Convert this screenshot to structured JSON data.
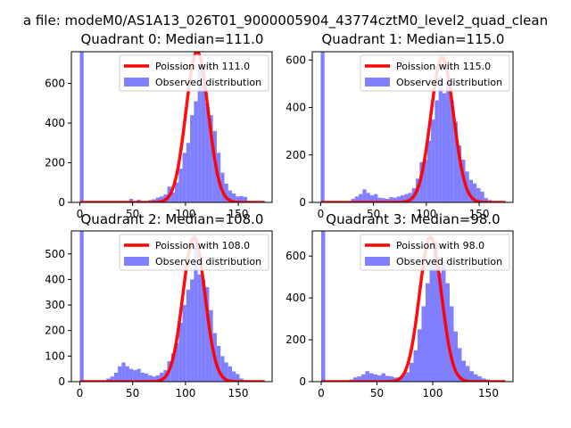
{
  "figure": {
    "suptitle": "a file: modeM0/AS1A13_026T01_9000005904_43774cztM0_level2_quad_clean"
  },
  "colors": {
    "histogram": "#7f7fff",
    "poisson_line": "#ff0000",
    "axes": "#000000",
    "background": "#ffffff"
  },
  "chart_data": [
    {
      "type": "bar",
      "title": "Quadrant 0: Median=111.0",
      "xlabel": "",
      "ylabel": "",
      "xlim": [
        -8,
        182
      ],
      "ylim": [
        0,
        760
      ],
      "xticks": [
        0,
        50,
        100,
        150
      ],
      "yticks": [
        0,
        200,
        400,
        600
      ],
      "bin_width": 3.6,
      "legend_position": "upper right",
      "legend": [
        "Poission with 111.0",
        "Observed distribution"
      ],
      "median": 111.0,
      "observed": {
        "name": "Observed distribution",
        "bins_x": [
          0,
          46.8,
          54,
          64.8,
          68.4,
          72,
          75.6,
          79.2,
          82.8,
          86.4,
          90,
          93.6,
          97.2,
          100.8,
          104.4,
          108,
          111.6,
          115.2,
          118.8,
          122.4,
          126,
          129.6,
          133.2,
          136.8,
          140.4,
          144,
          147.6,
          151.2,
          154.8,
          158.4,
          162
        ],
        "counts": [
          760,
          18,
          14,
          12,
          16,
          25,
          30,
          40,
          80,
          50,
          100,
          170,
          250,
          300,
          440,
          510,
          700,
          660,
          500,
          440,
          360,
          250,
          150,
          95,
          60,
          45,
          30,
          32,
          28,
          8,
          5
        ]
      },
      "poisson": {
        "name": "Poission with 111.0",
        "mean": 111.0,
        "x_range": [
          0,
          175
        ],
        "peak": 760
      }
    },
    {
      "type": "bar",
      "title": "Quadrant 1: Median=115.0",
      "xlabel": "",
      "ylabel": "",
      "xlim": [
        -8,
        182
      ],
      "ylim": [
        0,
        635
      ],
      "xticks": [
        0,
        50,
        100,
        150
      ],
      "yticks": [
        0,
        200,
        400,
        600
      ],
      "bin_width": 3.6,
      "legend_position": "upper right",
      "legend": [
        "Poission with 115.0",
        "Observed distribution"
      ],
      "median": 115.0,
      "observed": {
        "name": "Observed distribution",
        "bins_x": [
          0,
          28.8,
          32.4,
          36,
          39.6,
          43.2,
          46.8,
          50.4,
          54,
          57.6,
          61.2,
          64.8,
          68.4,
          72,
          75.6,
          79.2,
          82.8,
          86.4,
          90,
          93.6,
          97.2,
          100.8,
          104.4,
          108,
          111.6,
          115.2,
          118.8,
          122.4,
          126,
          129.6,
          133.2,
          136.8,
          140.4,
          144,
          147.6,
          151.2,
          154.8,
          158.4
        ],
        "counts": [
          635,
          15,
          25,
          35,
          55,
          40,
          30,
          35,
          20,
          18,
          15,
          22,
          20,
          25,
          30,
          35,
          40,
          60,
          100,
          170,
          180,
          260,
          350,
          430,
          530,
          460,
          500,
          430,
          340,
          240,
          180,
          130,
          95,
          80,
          60,
          45,
          18,
          10
        ]
      },
      "poisson": {
        "name": "Poission with 115.0",
        "mean": 115.0,
        "x_range": [
          0,
          175
        ],
        "peak": 610
      }
    },
    {
      "type": "bar",
      "title": "Quadrant 2: Median=108.0",
      "xlabel": "",
      "ylabel": "",
      "xlim": [
        -8,
        182
      ],
      "ylim": [
        0,
        590
      ],
      "xticks": [
        0,
        50,
        100,
        150
      ],
      "yticks": [
        0,
        100,
        200,
        300,
        400,
        500
      ],
      "bin_width": 3.6,
      "legend_position": "upper right",
      "legend": [
        "Poission with 108.0",
        "Observed distribution"
      ],
      "median": 108.0,
      "observed": {
        "name": "Observed distribution",
        "bins_x": [
          0,
          25.2,
          28.8,
          32.4,
          36,
          39.6,
          43.2,
          46.8,
          50.4,
          54,
          57.6,
          61.2,
          64.8,
          68.4,
          72,
          75.6,
          79.2,
          82.8,
          86.4,
          90,
          93.6,
          97.2,
          100.8,
          104.4,
          108,
          111.6,
          115.2,
          118.8,
          122.4,
          126,
          129.6,
          133.2,
          136.8,
          140.4,
          144,
          147.6,
          151.2,
          154.8
        ],
        "counts": [
          590,
          12,
          20,
          35,
          60,
          75,
          60,
          50,
          45,
          50,
          35,
          32,
          25,
          20,
          25,
          35,
          45,
          80,
          110,
          150,
          230,
          300,
          360,
          400,
          530,
          420,
          400,
          370,
          280,
          190,
          140,
          100,
          75,
          60,
          40,
          30,
          12,
          6
        ]
      },
      "poisson": {
        "name": "Poission with 108.0",
        "mean": 108.0,
        "x_range": [
          0,
          175
        ],
        "peak": 565
      }
    },
    {
      "type": "bar",
      "title": "Quadrant 3: Median=98.0",
      "xlabel": "",
      "ylabel": "",
      "xlim": [
        -8,
        172
      ],
      "ylim": [
        0,
        720
      ],
      "xticks": [
        0,
        50,
        100,
        150
      ],
      "yticks": [
        0,
        200,
        400,
        600
      ],
      "bin_width": 3.6,
      "legend_position": "upper right",
      "legend": [
        "Poission with 98.0",
        "Observed distribution"
      ],
      "median": 98.0,
      "observed": {
        "name": "Observed distribution",
        "bins_x": [
          0,
          25.2,
          28.8,
          32.4,
          36,
          39.6,
          43.2,
          46.8,
          50.4,
          54,
          57.6,
          61.2,
          64.8,
          68.4,
          72,
          75.6,
          79.2,
          82.8,
          86.4,
          90,
          93.6,
          97.2,
          100.8,
          104.4,
          108,
          111.6,
          115.2,
          118.8,
          122.4,
          126,
          129.6,
          133.2,
          136.8,
          140.4,
          144,
          147.6,
          151.2
        ],
        "counts": [
          720,
          10,
          20,
          25,
          35,
          50,
          40,
          35,
          30,
          40,
          28,
          25,
          20,
          20,
          30,
          45,
          90,
          150,
          250,
          360,
          470,
          560,
          670,
          520,
          570,
          470,
          360,
          240,
          160,
          100,
          75,
          50,
          35,
          25,
          15,
          10,
          5
        ]
      },
      "poisson": {
        "name": "Poission with 98.0",
        "mean": 98.0,
        "x_range": [
          0,
          165
        ],
        "peak": 690
      }
    }
  ]
}
